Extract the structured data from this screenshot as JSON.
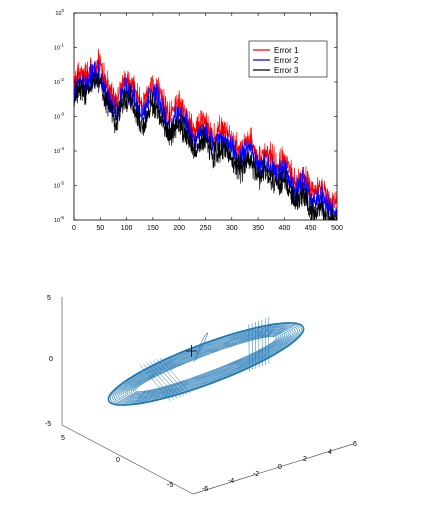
{
  "chart_data": [
    {
      "type": "line",
      "title": "",
      "xlabel": "",
      "ylabel": "",
      "xlim": [
        0,
        500
      ],
      "yscale": "log",
      "ylim": [
        1e-06,
        1
      ],
      "x_ticks": [
        0,
        50,
        100,
        150,
        200,
        250,
        300,
        350,
        400,
        450,
        500
      ],
      "x_tick_labels": [
        "0",
        "50",
        "100",
        "150",
        "200",
        "250",
        "300",
        "350",
        "400",
        "450",
        "500"
      ],
      "y_tick_labels": [
        {
          "mantissa": "10",
          "exp": "-6",
          "value": 1e-06
        },
        {
          "mantissa": "10",
          "exp": "-5",
          "value": 1e-05
        },
        {
          "mantissa": "10",
          "exp": "-4",
          "value": 0.0001
        },
        {
          "mantissa": "10",
          "exp": "-3",
          "value": 0.001
        },
        {
          "mantissa": "10",
          "exp": "-2",
          "value": 0.01
        },
        {
          "mantissa": "10",
          "exp": "-1",
          "value": 0.1
        },
        {
          "mantissa": "10",
          "exp": "0",
          "value": 1
        }
      ],
      "legend_position": "top-right",
      "series": [
        {
          "name": "Error 1",
          "color": "#ff0000",
          "style": "oscillating decaying envelope",
          "x": [
            0,
            10,
            20,
            32,
            47,
            60,
            80,
            95,
            110,
            130,
            148,
            160,
            180,
            200,
            213,
            230,
            245,
            265,
            280,
            300,
            315,
            335,
            350,
            365,
            385,
            400,
            420,
            435,
            455,
            470,
            490,
            500
          ],
          "y": [
            0.03,
            0.06,
            0.05,
            0.08,
            0.12,
            0.03,
            0.008,
            0.035,
            0.03,
            0.006,
            0.03,
            0.02,
            0.003,
            0.008,
            0.004,
            0.001,
            0.003,
            0.0008,
            0.0015,
            0.0008,
            0.0003,
            0.0007,
            0.0002,
            0.0003,
            0.00012,
            0.0002,
            4e-05,
            7e-05,
            2e-05,
            3e-05,
            1e-05,
            8e-06
          ]
        },
        {
          "name": "Error 2",
          "color": "#0000ff",
          "style": "oscillating decaying envelope",
          "x": [
            0,
            10,
            20,
            32,
            47,
            60,
            80,
            95,
            110,
            130,
            148,
            160,
            180,
            200,
            213,
            230,
            245,
            265,
            280,
            300,
            315,
            335,
            350,
            365,
            385,
            400,
            420,
            435,
            455,
            470,
            490,
            500
          ],
          "y": [
            0.015,
            0.03,
            0.025,
            0.04,
            0.06,
            0.015,
            0.004,
            0.018,
            0.015,
            0.003,
            0.015,
            0.01,
            0.0015,
            0.004,
            0.002,
            0.0005,
            0.0015,
            0.0004,
            0.0008,
            0.0004,
            0.00015,
            0.00035,
            0.0001,
            0.00015,
            6e-05,
            0.0001,
            2e-05,
            3.5e-05,
            1e-05,
            1.5e-05,
            5e-06,
            4e-06
          ]
        },
        {
          "name": "Error 3",
          "color": "#000000",
          "style": "oscillating decaying envelope",
          "x": [
            0,
            10,
            20,
            32,
            47,
            60,
            80,
            95,
            110,
            130,
            148,
            160,
            180,
            200,
            213,
            230,
            245,
            265,
            280,
            300,
            315,
            335,
            350,
            365,
            385,
            400,
            420,
            435,
            455,
            470,
            490,
            500
          ],
          "y": [
            0.01,
            0.02,
            0.015,
            0.025,
            0.035,
            0.01,
            0.002,
            0.01,
            0.008,
            0.0015,
            0.008,
            0.005,
            0.0008,
            0.002,
            0.001,
            0.0003,
            0.0008,
            0.0002,
            0.0004,
            0.0002,
            8e-05,
            0.00018,
            5e-05,
            8e-05,
            3e-05,
            5e-05,
            1e-05,
            1.8e-05,
            5e-06,
            8e-06,
            2.5e-06,
            2e-06
          ]
        }
      ]
    },
    {
      "type": "line3d",
      "title": "",
      "xlabel": "",
      "ylabel": "",
      "zlabel": "",
      "xlim": [
        -6,
        6
      ],
      "ylim": [
        -5,
        5
      ],
      "zlim": [
        -5,
        5
      ],
      "x_tick_labels": [
        "-6",
        "-4",
        "-2",
        "0",
        "2",
        "4",
        "6"
      ],
      "y_tick_labels": [
        "-5",
        "0",
        "5"
      ],
      "z_tick_labels": [
        "-5",
        "0",
        "5"
      ],
      "series": [
        {
          "name": "",
          "color": "#1f77b4",
          "style": "spiral trajectory (nested ellipses with a twisted band)"
        }
      ],
      "marker": {
        "symbol": "+",
        "color": "#000000"
      }
    }
  ]
}
